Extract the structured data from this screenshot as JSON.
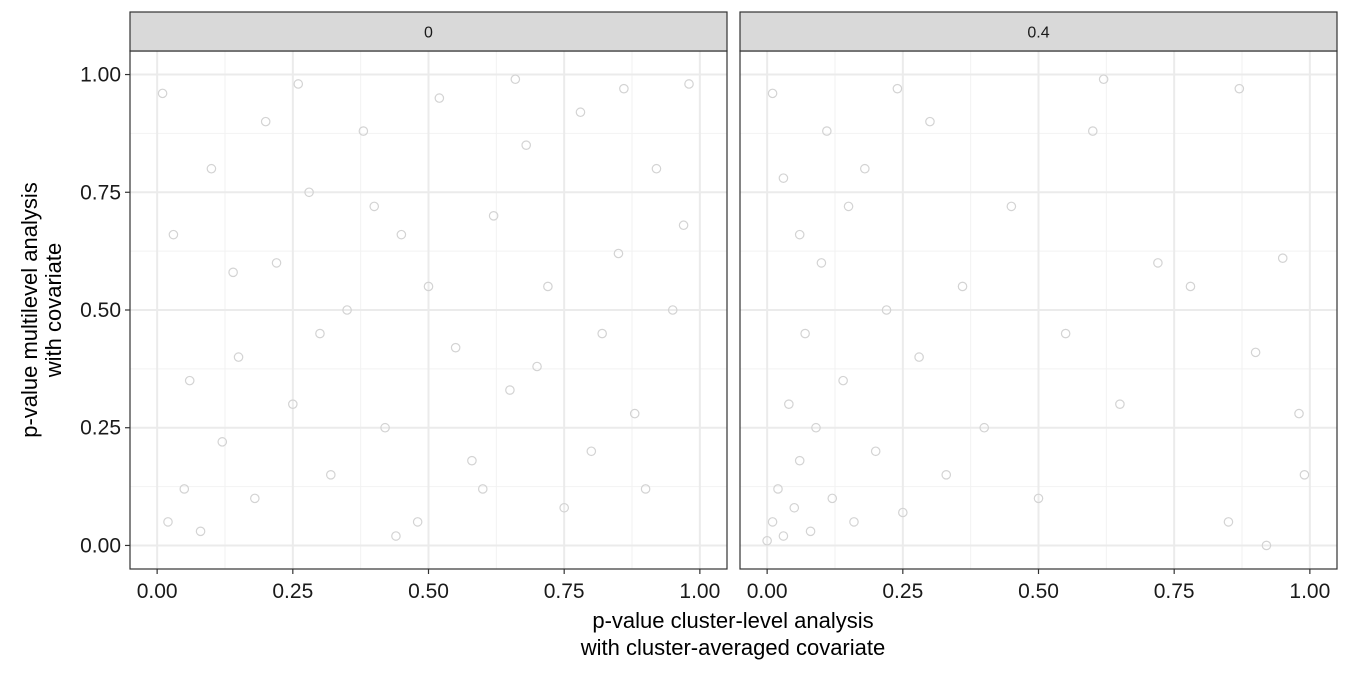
{
  "chart_data": {
    "type": "scatter",
    "xlabel_lines": [
      "p-value cluster-level analysis",
      "with cluster-averaged covariate"
    ],
    "ylabel_lines": [
      "p-value multilevel analysis",
      "with covariate"
    ],
    "xlim": [
      -0.05,
      1.05
    ],
    "ylim": [
      -0.05,
      1.05
    ],
    "x_ticks": [
      0,
      0.25,
      0.5,
      0.75,
      1
    ],
    "x_tick_labels": [
      "0.00",
      "0.25",
      "0.50",
      "0.75",
      "1.00"
    ],
    "y_ticks": [
      0,
      0.25,
      0.5,
      0.75,
      1
    ],
    "y_tick_labels": [
      "0.00",
      "0.25",
      "0.50",
      "0.75",
      "1.00"
    ],
    "grid": true,
    "point_color": "#d3d3d3",
    "point_style": "hollow-circle",
    "panels": [
      {
        "label": "0",
        "points": [
          [
            0.02,
            0.05
          ],
          [
            0.05,
            0.12
          ],
          [
            0.08,
            0.03
          ],
          [
            0.12,
            0.22
          ],
          [
            0.15,
            0.4
          ],
          [
            0.18,
            0.1
          ],
          [
            0.22,
            0.6
          ],
          [
            0.25,
            0.3
          ],
          [
            0.28,
            0.75
          ],
          [
            0.32,
            0.15
          ],
          [
            0.35,
            0.5
          ],
          [
            0.38,
            0.88
          ],
          [
            0.42,
            0.25
          ],
          [
            0.45,
            0.66
          ],
          [
            0.48,
            0.05
          ],
          [
            0.52,
            0.95
          ],
          [
            0.55,
            0.42
          ],
          [
            0.58,
            0.18
          ],
          [
            0.62,
            0.7
          ],
          [
            0.65,
            0.33
          ],
          [
            0.68,
            0.85
          ],
          [
            0.72,
            0.55
          ],
          [
            0.75,
            0.08
          ],
          [
            0.78,
            0.92
          ],
          [
            0.82,
            0.45
          ],
          [
            0.85,
            0.62
          ],
          [
            0.88,
            0.28
          ],
          [
            0.92,
            0.8
          ],
          [
            0.95,
            0.5
          ],
          [
            0.98,
            0.98
          ],
          [
            0.01,
            0.96
          ],
          [
            0.03,
            0.66
          ],
          [
            0.06,
            0.35
          ],
          [
            0.1,
            0.8
          ],
          [
            0.14,
            0.58
          ],
          [
            0.2,
            0.9
          ],
          [
            0.3,
            0.45
          ],
          [
            0.4,
            0.72
          ],
          [
            0.6,
            0.12
          ],
          [
            0.7,
            0.38
          ],
          [
            0.8,
            0.2
          ],
          [
            0.9,
            0.12
          ],
          [
            0.97,
            0.68
          ],
          [
            0.5,
            0.55
          ],
          [
            0.44,
            0.02
          ],
          [
            0.26,
            0.98
          ],
          [
            0.66,
            0.99
          ],
          [
            0.86,
            0.97
          ]
        ]
      },
      {
        "label": "0.4",
        "points": [
          [
            0.0,
            0.01
          ],
          [
            0.01,
            0.05
          ],
          [
            0.02,
            0.12
          ],
          [
            0.03,
            0.02
          ],
          [
            0.04,
            0.3
          ],
          [
            0.05,
            0.08
          ],
          [
            0.06,
            0.18
          ],
          [
            0.07,
            0.45
          ],
          [
            0.08,
            0.03
          ],
          [
            0.09,
            0.25
          ],
          [
            0.1,
            0.6
          ],
          [
            0.12,
            0.1
          ],
          [
            0.14,
            0.35
          ],
          [
            0.16,
            0.05
          ],
          [
            0.18,
            0.8
          ],
          [
            0.2,
            0.2
          ],
          [
            0.22,
            0.5
          ],
          [
            0.25,
            0.07
          ],
          [
            0.28,
            0.4
          ],
          [
            0.3,
            0.9
          ],
          [
            0.33,
            0.15
          ],
          [
            0.36,
            0.55
          ],
          [
            0.4,
            0.25
          ],
          [
            0.45,
            0.72
          ],
          [
            0.5,
            0.1
          ],
          [
            0.55,
            0.45
          ],
          [
            0.6,
            0.88
          ],
          [
            0.65,
            0.3
          ],
          [
            0.72,
            0.6
          ],
          [
            0.78,
            0.55
          ],
          [
            0.85,
            0.05
          ],
          [
            0.9,
            0.41
          ],
          [
            0.95,
            0.61
          ],
          [
            0.98,
            0.28
          ],
          [
            0.01,
            0.96
          ],
          [
            0.03,
            0.78
          ],
          [
            0.06,
            0.66
          ],
          [
            0.11,
            0.88
          ],
          [
            0.15,
            0.72
          ],
          [
            0.24,
            0.97
          ],
          [
            0.62,
            0.99
          ],
          [
            0.87,
            0.97
          ],
          [
            0.92,
            0.0
          ],
          [
            0.99,
            0.15
          ]
        ]
      }
    ]
  }
}
